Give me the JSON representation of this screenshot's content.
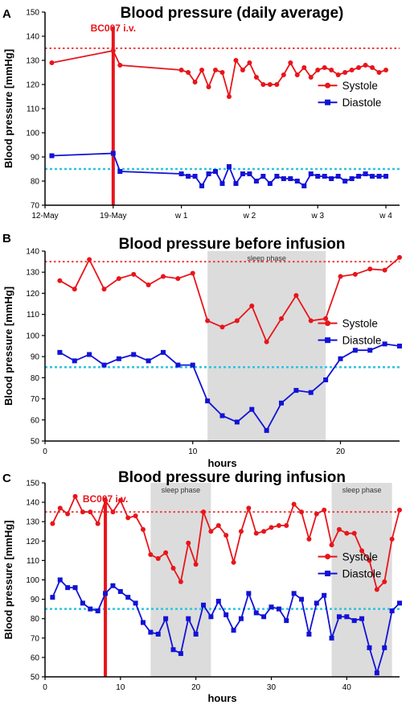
{
  "colors": {
    "systole": "#e8151b",
    "diastole": "#1212d6",
    "ref_systole": "#f04040",
    "ref_diastole": "#2ec4e0",
    "infusion": "#e8151b",
    "sleep": "#dcdcdc"
  },
  "chart_data": [
    {
      "panel": "A",
      "type": "line",
      "title": "Blood pressure (daily average)",
      "ylabel": "Blood pressure [mmHg]",
      "xlabel": "",
      "ylim": [
        70,
        150
      ],
      "yticks": [
        70,
        80,
        90,
        100,
        110,
        120,
        130,
        140,
        150
      ],
      "xlim": [
        0,
        52
      ],
      "xticks": [
        {
          "x": 0,
          "label": "12-May"
        },
        {
          "x": 10,
          "label": "19-May"
        },
        {
          "x": 20,
          "label": "w 1"
        },
        {
          "x": 30,
          "label": "w 2"
        },
        {
          "x": 40,
          "label": "w 3"
        },
        {
          "x": 50,
          "label": "w 4"
        }
      ],
      "ref_lines": [
        135,
        85
      ],
      "infusion": {
        "x": 10,
        "label": "BC007 i.v."
      },
      "legend": "right",
      "series": [
        {
          "name": "Systole",
          "marker": "circle",
          "x": [
            1,
            10,
            11,
            20,
            21,
            22,
            23,
            24,
            25,
            26,
            27,
            28,
            29,
            30,
            31,
            32,
            33,
            34,
            35,
            36,
            37,
            38,
            39,
            40,
            41,
            42,
            43,
            44,
            45,
            46,
            47,
            48,
            49,
            50
          ],
          "y": [
            129,
            134,
            128,
            126,
            125,
            121,
            126,
            119,
            126,
            125,
            115,
            130,
            126,
            129,
            123,
            120,
            120,
            120,
            124,
            129,
            124,
            127,
            123,
            126,
            127,
            126,
            124,
            125,
            126,
            127,
            128,
            127,
            125,
            126
          ]
        },
        {
          "name": "Diastole",
          "marker": "square",
          "x": [
            1,
            10,
            11,
            20,
            21,
            22,
            23,
            24,
            25,
            26,
            27,
            28,
            29,
            30,
            31,
            32,
            33,
            34,
            35,
            36,
            37,
            38,
            39,
            40,
            41,
            42,
            43,
            44,
            45,
            46,
            47,
            48,
            49,
            50
          ],
          "y": [
            90.5,
            91.5,
            84,
            83,
            82,
            82,
            78,
            83,
            84,
            79,
            86,
            79,
            83,
            83,
            80,
            82,
            79,
            82,
            81,
            81,
            80,
            78,
            83,
            82,
            82,
            81,
            82,
            80,
            81,
            82,
            83,
            82,
            82,
            82
          ]
        }
      ]
    },
    {
      "panel": "B",
      "type": "line",
      "title": "Blood pressure before infusion",
      "ylabel": "Blood pressure [mmHg]",
      "xlabel": "hours",
      "ylim": [
        50,
        140
      ],
      "yticks": [
        50,
        60,
        70,
        80,
        90,
        100,
        110,
        120,
        130,
        140
      ],
      "xlim": [
        0,
        24
      ],
      "xticks": [
        {
          "x": 0,
          "label": "0"
        },
        {
          "x": 10,
          "label": "10"
        },
        {
          "x": 20,
          "label": "20"
        }
      ],
      "ref_lines": [
        135,
        85
      ],
      "sleep": [
        {
          "from": 11,
          "to": 19,
          "label": "sleep phase"
        }
      ],
      "legend": "right",
      "series": [
        {
          "name": "Systole",
          "marker": "circle",
          "x": [
            1,
            2,
            3,
            4,
            5,
            6,
            7,
            8,
            9,
            10,
            11,
            12,
            13,
            14,
            15,
            16,
            17,
            18,
            19,
            20,
            21,
            22,
            23,
            24
          ],
          "y": [
            126,
            122,
            136,
            122,
            127,
            129,
            124,
            128,
            127,
            129.5,
            107,
            104,
            107,
            114,
            97,
            108,
            119,
            107,
            108,
            128,
            129,
            131.5,
            131,
            137
          ]
        },
        {
          "name": "Diastole",
          "marker": "square",
          "x": [
            1,
            2,
            3,
            4,
            5,
            6,
            7,
            8,
            9,
            10,
            11,
            12,
            13,
            14,
            15,
            16,
            17,
            18,
            19,
            20,
            21,
            22,
            23,
            24
          ],
          "y": [
            92,
            88,
            91,
            86,
            89,
            91,
            88,
            92,
            86,
            86,
            69,
            62,
            59,
            65,
            55,
            68,
            74,
            73,
            79,
            89,
            93,
            93,
            96,
            95
          ]
        }
      ]
    },
    {
      "panel": "C",
      "type": "line",
      "title": "Blood pressure during infusion",
      "ylabel": "Blood pressure [mmHg]",
      "xlabel": "hours",
      "ylim": [
        50,
        150
      ],
      "yticks": [
        50,
        60,
        70,
        80,
        90,
        100,
        110,
        120,
        130,
        140,
        150
      ],
      "xlim": [
        0,
        47
      ],
      "xticks": [
        {
          "x": 0,
          "label": "0"
        },
        {
          "x": 10,
          "label": "10"
        },
        {
          "x": 20,
          "label": "20"
        },
        {
          "x": 30,
          "label": "30"
        },
        {
          "x": 40,
          "label": "40"
        }
      ],
      "ref_lines": [
        135,
        85
      ],
      "infusion": {
        "x": 8,
        "label": "BC007 i.v."
      },
      "sleep": [
        {
          "from": 14,
          "to": 22,
          "label": "sleep phase"
        },
        {
          "from": 38,
          "to": 46,
          "label": "sleep phase"
        }
      ],
      "legend": "right",
      "series": [
        {
          "name": "Systole",
          "marker": "circle",
          "x": [
            1,
            2,
            3,
            4,
            5,
            6,
            7,
            8,
            9,
            10,
            11,
            12,
            13,
            14,
            15,
            16,
            17,
            18,
            19,
            20,
            21,
            22,
            23,
            24,
            25,
            26,
            27,
            28,
            29,
            30,
            31,
            32,
            33,
            34,
            35,
            36,
            37,
            38,
            39,
            40,
            41,
            42,
            43,
            44,
            45,
            46,
            47
          ],
          "y": [
            129,
            137,
            134,
            143,
            135,
            135,
            129,
            141,
            135,
            141,
            132,
            133,
            126,
            113,
            111,
            114,
            106,
            99,
            119,
            108,
            135,
            125,
            128,
            123,
            109,
            125,
            137,
            124,
            125,
            127,
            128,
            128,
            139,
            135,
            121,
            134,
            136,
            118,
            126,
            124,
            124,
            115,
            110,
            95,
            99,
            121,
            136
          ]
        },
        {
          "name": "Diastole",
          "marker": "square",
          "x": [
            1,
            2,
            3,
            4,
            5,
            6,
            7,
            8,
            9,
            10,
            11,
            12,
            13,
            14,
            15,
            16,
            17,
            18,
            19,
            20,
            21,
            22,
            23,
            24,
            25,
            26,
            27,
            28,
            29,
            30,
            31,
            32,
            33,
            34,
            35,
            36,
            37,
            38,
            39,
            40,
            41,
            42,
            43,
            44,
            45,
            46,
            47
          ],
          "y": [
            91,
            100,
            96,
            96,
            88,
            85,
            84,
            93,
            97,
            94,
            91,
            88,
            78,
            73,
            72,
            80,
            64,
            62,
            80,
            72,
            87,
            81,
            89,
            82,
            74,
            80,
            93,
            83,
            81,
            86,
            85,
            79,
            93,
            90,
            72,
            88,
            92,
            70,
            81,
            81,
            79,
            80,
            65,
            52,
            65,
            84,
            88
          ]
        }
      ]
    }
  ]
}
